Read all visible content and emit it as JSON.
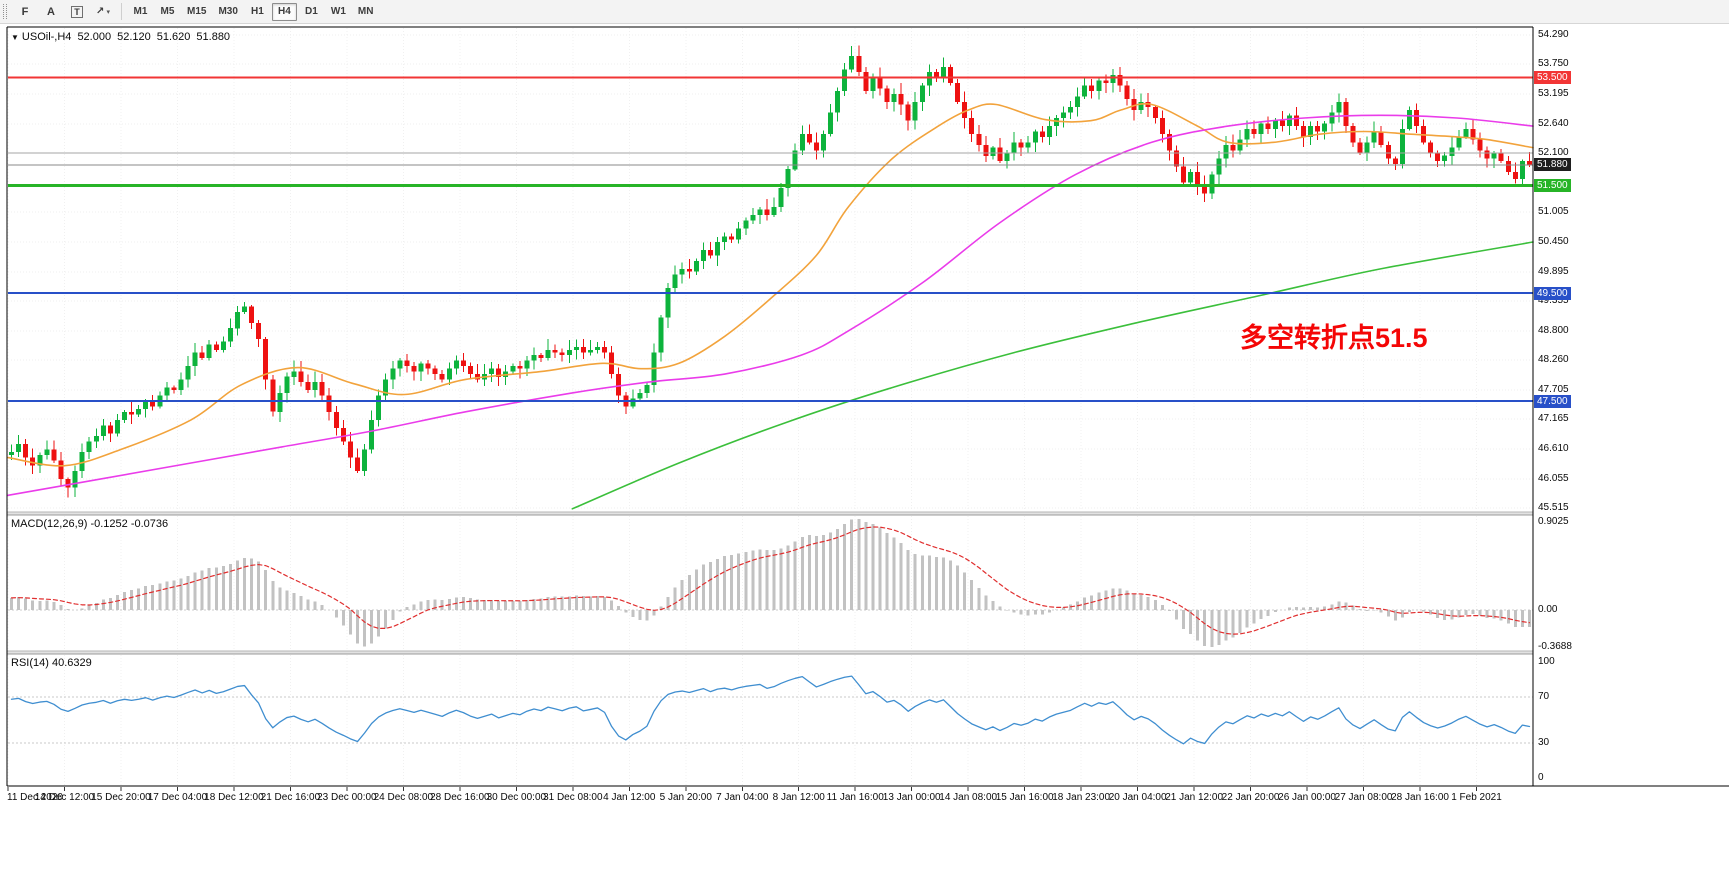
{
  "toolbar": {
    "tools": [
      {
        "id": "fibonacci",
        "glyph": "F",
        "has_dropdown": false
      },
      {
        "id": "text",
        "glyph": "A",
        "has_dropdown": false
      },
      {
        "id": "text-label",
        "glyph": "T",
        "has_dropdown": false
      },
      {
        "id": "arrows",
        "glyph": "↗",
        "has_dropdown": true
      }
    ],
    "timeframes": [
      {
        "label": "M1",
        "active": false
      },
      {
        "label": "M5",
        "active": false
      },
      {
        "label": "M15",
        "active": false
      },
      {
        "label": "M30",
        "active": false
      },
      {
        "label": "H1",
        "active": false
      },
      {
        "label": "H4",
        "active": true
      },
      {
        "label": "D1",
        "active": false
      },
      {
        "label": "W1",
        "active": false
      },
      {
        "label": "MN",
        "active": false
      }
    ]
  },
  "chart": {
    "symbol_label": "USOil-,H4",
    "open": "52.000",
    "high": "52.120",
    "low": "51.620",
    "close": "51.880",
    "annotation": "多空转折点51.5",
    "price_axis": {
      "regular": [
        {
          "text": "54.290",
          "price": 54.29
        },
        {
          "text": "53.750",
          "price": 53.75
        },
        {
          "text": "53.195",
          "price": 53.195
        },
        {
          "text": "52.640",
          "price": 52.64
        },
        {
          "text": "52.100",
          "price": 52.1
        },
        {
          "text": "51.005",
          "price": 51.005
        },
        {
          "text": "50.450",
          "price": 50.45
        },
        {
          "text": "49.895",
          "price": 49.895
        },
        {
          "text": "49.355",
          "price": 49.355
        },
        {
          "text": "48.800",
          "price": 48.8
        },
        {
          "text": "48.260",
          "price": 48.26
        },
        {
          "text": "47.705",
          "price": 47.705
        },
        {
          "text": "47.165",
          "price": 47.165
        },
        {
          "text": "46.610",
          "price": 46.61
        },
        {
          "text": "46.055",
          "price": 46.055
        },
        {
          "text": "45.515",
          "price": 45.515
        }
      ],
      "special": [
        {
          "id": "resistance",
          "text": "53.500",
          "price": 53.5,
          "bg": "#f23535"
        },
        {
          "id": "bid",
          "text": "51.880",
          "price": 51.88,
          "bg": "#1f1f1f"
        },
        {
          "id": "pivot",
          "text": "51.500",
          "price": 51.5,
          "bg": "#27b427"
        },
        {
          "id": "support-1",
          "text": "49.500",
          "price": 49.5,
          "bg": "#2850c8"
        },
        {
          "id": "support-2",
          "text": "47.500",
          "price": 47.5,
          "bg": "#2850c8"
        }
      ]
    }
  },
  "macd_panel": {
    "title": "MACD(12,26,9) -0.1252 -0.0736",
    "axis": [
      {
        "text": "0.9025",
        "value": 0.9025
      },
      {
        "text": "0.00",
        "value": 0
      },
      {
        "text": "-0.3688",
        "value": -0.3688
      }
    ]
  },
  "rsi_panel": {
    "title": "RSI(14) 40.6329",
    "axis": [
      {
        "text": "100",
        "value": 100
      },
      {
        "text": "70",
        "value": 70
      },
      {
        "text": "30",
        "value": 30
      },
      {
        "text": "0",
        "value": 0
      }
    ],
    "levels": [
      70,
      30
    ]
  },
  "chart_data": {
    "type": "candlestick",
    "symbol": "USOil",
    "timeframe": "H4",
    "ohlc_current": {
      "open": 52.0,
      "high": 52.12,
      "low": 51.62,
      "close": 51.88
    },
    "y_range": [
      45.515,
      54.29
    ],
    "up_color": "#0db33c",
    "down_color": "#ee1111",
    "time_labels": [
      "11 Dec 2020",
      "14 Dec 12:00",
      "15 Dec 20:00",
      "17 Dec 04:00",
      "18 Dec 12:00",
      "21 Dec 16:00",
      "23 Dec 00:00",
      "24 Dec 08:00",
      "28 Dec 16:00",
      "30 Dec 00:00",
      "31 Dec 08:00",
      "4 Jan 12:00",
      "5 Jan 20:00",
      "7 Jan 04:00",
      "8 Jan 12:00",
      "11 Jan 16:00",
      "13 Jan 00:00",
      "14 Jan 08:00",
      "15 Jan 16:00",
      "18 Jan 23:00",
      "20 Jan 04:00",
      "21 Jan 12:00",
      "22 Jan 20:00",
      "26 Jan 00:00",
      "27 Jan 08:00",
      "28 Jan 16:00",
      "1 Feb 2021"
    ],
    "pre_window_closes": [
      45.7,
      45.8,
      45.75,
      45.9,
      46.0,
      45.92,
      46.05,
      46.15,
      46.08,
      46.2,
      46.12,
      46.25,
      46.18,
      46.3,
      46.22,
      46.35,
      46.28,
      46.4,
      46.32,
      46.45,
      46.38,
      46.3,
      46.42,
      46.35,
      46.48,
      46.4,
      46.52,
      46.45,
      46.55,
      46.5
    ],
    "closes": [
      46.55,
      46.7,
      46.45,
      46.3,
      46.5,
      46.6,
      46.4,
      46.05,
      45.9,
      46.2,
      46.55,
      46.75,
      46.85,
      47.05,
      46.9,
      47.15,
      47.3,
      47.25,
      47.35,
      47.5,
      47.4,
      47.6,
      47.75,
      47.7,
      47.9,
      48.15,
      48.4,
      48.3,
      48.55,
      48.45,
      48.6,
      48.85,
      49.15,
      49.25,
      48.95,
      48.65,
      47.9,
      47.3,
      47.65,
      47.95,
      48.05,
      47.85,
      47.7,
      47.85,
      47.6,
      47.3,
      47.0,
      46.75,
      46.45,
      46.2,
      46.6,
      47.15,
      47.6,
      47.9,
      48.1,
      48.25,
      48.15,
      48.05,
      48.2,
      48.1,
      48.0,
      47.9,
      48.1,
      48.25,
      48.15,
      48.0,
      47.9,
      48.0,
      48.1,
      47.95,
      48.05,
      48.15,
      48.1,
      48.25,
      48.35,
      48.3,
      48.45,
      48.4,
      48.35,
      48.45,
      48.5,
      48.4,
      48.45,
      48.5,
      48.4,
      48.0,
      47.6,
      47.4,
      47.55,
      47.65,
      47.8,
      48.4,
      49.05,
      49.6,
      49.85,
      49.95,
      49.9,
      50.1,
      50.3,
      50.2,
      50.45,
      50.55,
      50.5,
      50.7,
      50.85,
      50.95,
      51.05,
      50.95,
      51.1,
      51.45,
      51.8,
      52.15,
      52.45,
      52.3,
      52.15,
      52.45,
      52.85,
      53.25,
      53.65,
      53.9,
      53.6,
      53.25,
      53.5,
      53.3,
      53.05,
      53.2,
      53.0,
      52.7,
      53.05,
      53.35,
      53.6,
      53.5,
      53.7,
      53.4,
      53.05,
      52.75,
      52.45,
      52.25,
      52.05,
      52.2,
      51.95,
      52.1,
      52.3,
      52.2,
      52.3,
      52.5,
      52.4,
      52.6,
      52.75,
      52.85,
      52.95,
      53.15,
      53.35,
      53.25,
      53.45,
      53.4,
      53.55,
      53.35,
      53.1,
      52.9,
      53.05,
      52.95,
      52.75,
      52.45,
      52.15,
      51.85,
      51.55,
      51.75,
      51.5,
      51.35,
      51.7,
      52.0,
      52.25,
      52.15,
      52.35,
      52.55,
      52.45,
      52.65,
      52.55,
      52.7,
      52.6,
      52.8,
      52.6,
      52.4,
      52.6,
      52.5,
      52.65,
      52.85,
      53.05,
      52.6,
      52.3,
      52.1,
      52.3,
      52.5,
      52.25,
      52.0,
      51.9,
      52.55,
      52.9,
      52.6,
      52.3,
      52.1,
      51.95,
      52.05,
      52.2,
      52.4,
      52.55,
      52.35,
      52.15,
      52.0,
      52.1,
      51.95,
      51.75,
      51.62,
      51.95,
      51.88
    ],
    "horizontal_lines": [
      {
        "id": "resistance-line",
        "price": 53.5,
        "color": "#f23535",
        "width": 2
      },
      {
        "id": "minor-line",
        "price": 52.1,
        "color": "#a6a6a6",
        "width": 1
      },
      {
        "id": "bid-line",
        "price": 51.88,
        "color": "#8a8a8a",
        "width": 1
      },
      {
        "id": "pivot-line",
        "price": 51.5,
        "color": "#27b427",
        "width": 3
      },
      {
        "id": "support-line-1",
        "price": 49.5,
        "color": "#2850c8",
        "width": 2
      },
      {
        "id": "support-line-2",
        "price": 47.5,
        "color": "#2850c8",
        "width": 2
      }
    ],
    "moving_averages": [
      {
        "name": "ma-fast",
        "color": "#f2a33c",
        "anchors": [
          [
            0,
            46.45
          ],
          [
            0.037,
            46.3
          ],
          [
            0.074,
            46.6
          ],
          [
            0.12,
            47.15
          ],
          [
            0.153,
            47.8
          ],
          [
            0.19,
            48.12
          ],
          [
            0.227,
            47.82
          ],
          [
            0.26,
            47.62
          ],
          [
            0.3,
            47.9
          ],
          [
            0.35,
            48.05
          ],
          [
            0.39,
            48.2
          ],
          [
            0.415,
            48.1
          ],
          [
            0.44,
            48.2
          ],
          [
            0.47,
            48.7
          ],
          [
            0.5,
            49.4
          ],
          [
            0.53,
            50.2
          ],
          [
            0.551,
            51.1
          ],
          [
            0.58,
            52.0
          ],
          [
            0.61,
            52.6
          ],
          [
            0.63,
            52.9
          ],
          [
            0.648,
            53.0
          ],
          [
            0.68,
            52.72
          ],
          [
            0.71,
            52.7
          ],
          [
            0.73,
            52.9
          ],
          [
            0.75,
            53.0
          ],
          [
            0.78,
            52.6
          ],
          [
            0.8,
            52.3
          ],
          [
            0.83,
            52.3
          ],
          [
            0.86,
            52.45
          ],
          [
            0.89,
            52.5
          ],
          [
            0.92,
            52.45
          ],
          [
            0.95,
            52.4
          ],
          [
            0.97,
            52.35
          ],
          [
            1,
            52.2
          ]
        ]
      },
      {
        "name": "ma-mid",
        "color": "#ea3cea",
        "anchors": [
          [
            0,
            45.75
          ],
          [
            0.06,
            46.05
          ],
          [
            0.12,
            46.35
          ],
          [
            0.18,
            46.65
          ],
          [
            0.24,
            46.95
          ],
          [
            0.3,
            47.3
          ],
          [
            0.37,
            47.65
          ],
          [
            0.42,
            47.85
          ],
          [
            0.47,
            48.0
          ],
          [
            0.52,
            48.35
          ],
          [
            0.551,
            48.8
          ],
          [
            0.6,
            49.7
          ],
          [
            0.65,
            50.8
          ],
          [
            0.7,
            51.7
          ],
          [
            0.75,
            52.3
          ],
          [
            0.8,
            52.6
          ],
          [
            0.85,
            52.75
          ],
          [
            0.9,
            52.8
          ],
          [
            0.95,
            52.75
          ],
          [
            1,
            52.6
          ]
        ]
      },
      {
        "name": "ma-slow",
        "color": "#3bbf3b",
        "anchors": [
          [
            0.37,
            45.5
          ],
          [
            0.44,
            46.35
          ],
          [
            0.51,
            47.1
          ],
          [
            0.58,
            47.75
          ],
          [
            0.66,
            48.4
          ],
          [
            0.74,
            48.95
          ],
          [
            0.82,
            49.45
          ],
          [
            0.9,
            49.95
          ],
          [
            1,
            50.45
          ]
        ]
      }
    ],
    "indicators": [
      {
        "type": "MACD",
        "fast": 12,
        "slow": 26,
        "signal": 9,
        "current_main": -0.1252,
        "current_signal": -0.0736,
        "range": [
          -0.3688,
          0.9025
        ]
      },
      {
        "type": "RSI",
        "period": 14,
        "current": 40.6329,
        "range": [
          0,
          100
        ],
        "levels": [
          70,
          30
        ]
      }
    ]
  }
}
